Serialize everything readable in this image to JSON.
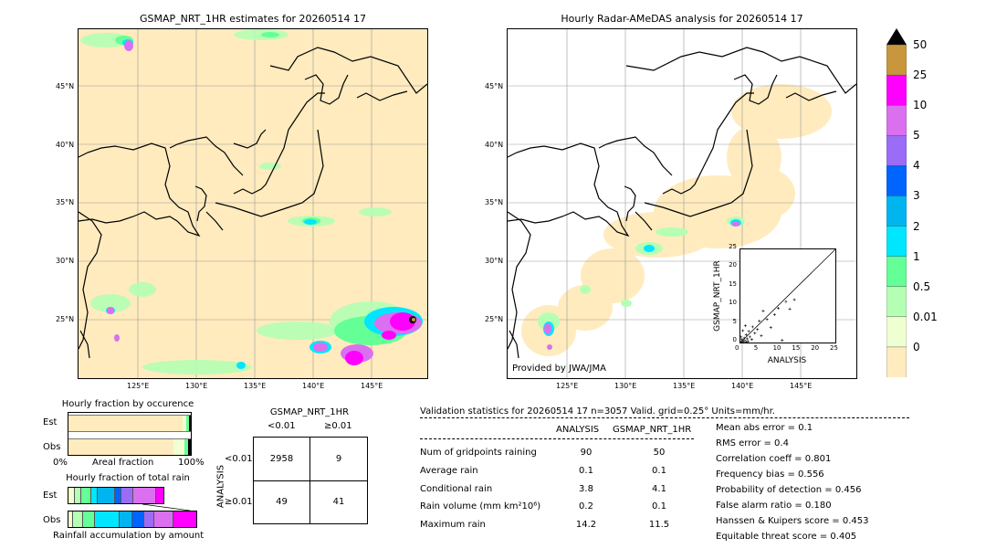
{
  "left_map": {
    "title": "GSMAP_NRT_1HR estimates for 20260514 17",
    "lat_labels": [
      "45°N",
      "40°N",
      "35°N",
      "30°N",
      "25°N"
    ],
    "lon_labels": [
      "125°E",
      "130°E",
      "135°E",
      "140°E",
      "145°E"
    ]
  },
  "right_map": {
    "title": "Hourly Radar-AMeDAS analysis for 20260514 17",
    "lat_labels": [
      "45°N",
      "40°N",
      "35°N",
      "30°N",
      "25°N"
    ],
    "lon_labels": [
      "125°E",
      "130°E",
      "135°E",
      "140°E",
      "145°E"
    ],
    "credit": "Provided by JWA/JMA"
  },
  "colorbar": {
    "labels": [
      "50",
      "25",
      "10",
      "5",
      "4",
      "3",
      "2",
      "1",
      "0.5",
      "0.01",
      "0"
    ],
    "colors": [
      "#c8963c",
      "#ff00ff",
      "#da70f0",
      "#9b6cf5",
      "#0064ff",
      "#00b4f0",
      "#00e6ff",
      "#64ff96",
      "#b4ffb4",
      "#f0ffd2",
      "#ffebbe"
    ]
  },
  "inset_scatter": {
    "ylabel": "GSMAP_NRT_1HR",
    "xlabel": "ANALYSIS",
    "ticks": [
      "0",
      "5",
      "10",
      "15",
      "20",
      "25"
    ]
  },
  "fraction_occurrence": {
    "title": "Hourly fraction by occurence",
    "row_labels": [
      "Est",
      "Obs"
    ],
    "axis_left": "0%",
    "axis_mid": "Areal fraction",
    "axis_right": "100%"
  },
  "fraction_rain": {
    "title": "Hourly fraction of total rain",
    "row_labels": [
      "Est",
      "Obs"
    ],
    "axis_mid": "Rainfall accumulation by amount"
  },
  "contingency": {
    "title": "GSMAP_NRT_1HR",
    "col_labels": [
      "<0.01",
      "≥0.01"
    ],
    "row_axis": "ANALYSIS",
    "row_labels": [
      "<0.01",
      "≥0.01"
    ],
    "cells": [
      [
        "2958",
        "9"
      ],
      [
        "49",
        "41"
      ]
    ]
  },
  "validation": {
    "header": "Validation statistics for 20260514 17  n=3057 Valid. grid=0.25° Units=mm/hr.",
    "col_analysis": "ANALYSIS",
    "col_gsmap": "GSMAP_NRT_1HR",
    "rows": [
      {
        "label": "Num of gridpoints raining",
        "analysis": "90",
        "gsmap": "50"
      },
      {
        "label": "Average rain",
        "analysis": "0.1",
        "gsmap": "0.1"
      },
      {
        "label": "Conditional rain",
        "analysis": "3.8",
        "gsmap": "4.1"
      },
      {
        "label": "Rain volume (mm km²10⁶)",
        "analysis": "0.2",
        "gsmap": "0.1"
      },
      {
        "label": "Maximum rain",
        "analysis": "14.2",
        "gsmap": "11.5"
      }
    ],
    "scores": [
      "Mean abs error =    0.1",
      "RMS error =    0.4",
      "Correlation coeff =  0.801",
      "Frequency bias =  0.556",
      "Probability of detection =  0.456",
      "False alarm ratio =  0.180",
      "Hanssen & Kuipers score =  0.453",
      "Equitable threat score =  0.405"
    ]
  },
  "chart_data": [
    {
      "type": "scatter",
      "title": "",
      "xlabel": "ANALYSIS",
      "ylabel": "GSMAP_NRT_1HR",
      "xlim": [
        0,
        25
      ],
      "ylim": [
        0,
        25
      ],
      "points": [
        [
          0.3,
          0.2
        ],
        [
          0.5,
          0.4
        ],
        [
          0.8,
          0.2
        ],
        [
          1.0,
          1.2
        ],
        [
          1.2,
          0.5
        ],
        [
          1.5,
          2.1
        ],
        [
          1.8,
          1.0
        ],
        [
          2.2,
          3.0
        ],
        [
          2.5,
          1.5
        ],
        [
          3.0,
          0.8
        ],
        [
          3.2,
          4.2
        ],
        [
          3.8,
          2.5
        ],
        [
          4.5,
          3.5
        ],
        [
          5.0,
          5.8
        ],
        [
          5.5,
          1.8
        ],
        [
          6.0,
          8.5
        ],
        [
          7.0,
          6.2
        ],
        [
          8.0,
          4.0
        ],
        [
          9.0,
          7.5
        ],
        [
          10.0,
          9.2
        ],
        [
          11.0,
          0.6
        ],
        [
          12.0,
          11.0
        ],
        [
          13.0,
          9.0
        ],
        [
          14.2,
          11.5
        ],
        [
          0.2,
          1.5
        ],
        [
          0.6,
          3.2
        ],
        [
          1.3,
          4.5
        ],
        [
          2.0,
          0.3
        ],
        [
          0.4,
          0.8
        ],
        [
          1.6,
          0.1
        ]
      ]
    }
  ]
}
